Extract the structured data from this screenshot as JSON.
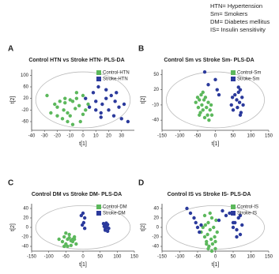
{
  "notes": [
    "HTN= Hypertension",
    "Sm= Smokers",
    "DM= Diabetes mellitus",
    "IS= Insulin sensitivity"
  ],
  "chart_data": [
    {
      "type": "scatter",
      "panel": "A",
      "title": "Control HTN vs Stroke HTN- PLS-DA",
      "x_label": "t[1]",
      "y_label": "t[2]",
      "xlim": [
        -40,
        40
      ],
      "ylim": [
        -90,
        120
      ],
      "xticks": [
        -40,
        -30,
        -20,
        -10,
        0,
        10,
        20,
        30
      ],
      "yticks": [
        100,
        60,
        20,
        -20,
        -60
      ],
      "series": [
        {
          "name": "Control-HTN",
          "color": "#5cb85c",
          "x": [
            -28,
            -22,
            -20,
            -18,
            -15,
            -14,
            -12,
            -10,
            -8,
            -6,
            -5,
            -3,
            -2,
            0,
            2,
            4,
            -16,
            -12,
            -8,
            -20,
            -10,
            -5,
            0,
            -25,
            -14
          ],
          "y": [
            30,
            0,
            -10,
            10,
            -20,
            5,
            -30,
            -40,
            10,
            -15,
            20,
            -5,
            -60,
            30,
            -20,
            0,
            -50,
            -60,
            -70,
            -40,
            15,
            40,
            -35,
            -30,
            20
          ]
        },
        {
          "name": "Stroke-HTN",
          "color": "#2b3a9c",
          "x": [
            2,
            5,
            8,
            10,
            12,
            14,
            15,
            18,
            20,
            22,
            24,
            25,
            28,
            30,
            32,
            35,
            18,
            10,
            26,
            14
          ],
          "y": [
            20,
            -10,
            40,
            10,
            60,
            -30,
            0,
            20,
            -20,
            30,
            -40,
            10,
            -10,
            -50,
            0,
            -60,
            50,
            -20,
            40,
            -45
          ]
        }
      ]
    },
    {
      "type": "scatter",
      "panel": "B",
      "title": "Control Sm vs Stroke Sm- PLS-DA",
      "x_label": "t[1]",
      "y_label": "t[2]",
      "xlim": [
        -150,
        150
      ],
      "ylim": [
        -60,
        60
      ],
      "xticks": [
        -150,
        -100,
        -50,
        0,
        50,
        100,
        150
      ],
      "yticks": [
        50,
        20,
        -10,
        -40
      ],
      "series": [
        {
          "name": "Control-Sm",
          "color": "#5cb85c",
          "x": [
            -55,
            -50,
            -48,
            -45,
            -42,
            -40,
            -38,
            -35,
            -32,
            -30,
            -28,
            -25,
            -22,
            -20,
            -18,
            -15,
            -12,
            -10,
            -45,
            -35
          ],
          "y": [
            -5,
            5,
            -15,
            0,
            -25,
            10,
            -10,
            -20,
            0,
            -35,
            5,
            -15,
            -30,
            -5,
            -40,
            -20,
            -10,
            -30,
            -30,
            15
          ]
        },
        {
          "name": "Stroke-Sm",
          "color": "#2b3a9c",
          "x": [
            -30,
            -20,
            0,
            5,
            10,
            45,
            48,
            50,
            55,
            60,
            62,
            65,
            68,
            70,
            72,
            75,
            78,
            70,
            65
          ],
          "y": [
            55,
            30,
            40,
            20,
            10,
            -10,
            5,
            -20,
            10,
            0,
            -15,
            15,
            -5,
            20,
            -25,
            5,
            -10,
            -30,
            25
          ]
        }
      ]
    },
    {
      "type": "scatter",
      "panel": "C",
      "title": "Control DM vs Stroke DM- PLS-DA",
      "x_label": "t[1]",
      "y_label": "t[2]",
      "xlim": [
        -150,
        150
      ],
      "ylim": [
        -50,
        50
      ],
      "xticks": [
        -150,
        -100,
        -50,
        0,
        50,
        100,
        150
      ],
      "yticks": [
        40,
        20,
        0,
        -20,
        -40
      ],
      "series": [
        {
          "name": "Control-DM",
          "color": "#5cb85c",
          "x": [
            -70,
            -60,
            -55,
            -50,
            -45,
            -40,
            -35,
            -30,
            -25,
            -20,
            -55,
            -45,
            -35,
            -40,
            -30,
            -50,
            -25
          ],
          "y": [
            -25,
            -30,
            -20,
            -35,
            -25,
            -22,
            -28,
            -30,
            -20,
            -35,
            -40,
            -40,
            -38,
            -15,
            -25,
            -12,
            -25
          ]
        },
        {
          "name": "Stroke-DM",
          "color": "#2b3a9c",
          "x": [
            -5,
            0,
            5,
            2,
            -2,
            5,
            60,
            62,
            65,
            68,
            70,
            72,
            75,
            65,
            70,
            68,
            72
          ],
          "y": [
            25,
            30,
            20,
            10,
            5,
            -2,
            8,
            2,
            -4,
            5,
            0,
            6,
            -2,
            -6,
            3,
            9,
            -8
          ]
        }
      ]
    },
    {
      "type": "scatter",
      "panel": "D",
      "title": "Control IS vs Stroke IS- PLS-DA",
      "x_label": "t[1]",
      "y_label": "t[2]",
      "xlim": [
        -150,
        150
      ],
      "ylim": [
        -50,
        50
      ],
      "xticks": [
        -150,
        -100,
        -50,
        0,
        50,
        100,
        150
      ],
      "yticks": [
        40,
        20,
        0,
        -20,
        -40
      ],
      "series": [
        {
          "name": "Control-IS",
          "color": "#5cb85c",
          "x": [
            -40,
            -35,
            -30,
            -28,
            -25,
            -22,
            -20,
            -18,
            -15,
            -12,
            -10,
            -8,
            -5,
            -2,
            0,
            2,
            5,
            -30,
            -20,
            -10,
            -15,
            -25,
            0
          ],
          "y": [
            -10,
            0,
            -20,
            5,
            -30,
            -15,
            10,
            -40,
            -5,
            -25,
            20,
            -35,
            0,
            -20,
            -45,
            15,
            -10,
            25,
            -45,
            -50,
            30,
            -35,
            -30
          ]
        },
        {
          "name": "Stroke-IS",
          "color": "#2b3a9c",
          "x": [
            -80,
            -70,
            -60,
            -55,
            -50,
            -45,
            -40,
            10,
            20,
            30,
            40,
            50,
            55,
            60,
            65,
            70,
            75,
            70,
            60,
            50
          ],
          "y": [
            40,
            30,
            20,
            10,
            0,
            -10,
            5,
            15,
            35,
            25,
            30,
            0,
            10,
            -5,
            20,
            -15,
            5,
            25,
            -20,
            10
          ]
        }
      ]
    }
  ]
}
